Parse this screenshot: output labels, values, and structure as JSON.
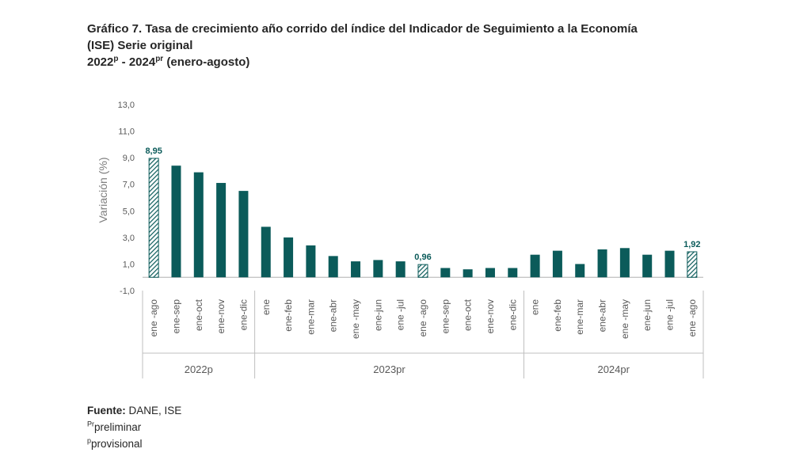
{
  "header": {
    "title_line1": "Gráfico 7. Tasa de crecimiento año corrido del índice del Indicador de Seguimiento a la Economía",
    "title_line2": "(ISE) Serie original",
    "title_line3_a": "2022",
    "title_line3_a_sup": "p",
    "title_line3_sep": " - 2024",
    "title_line3_b_sup": "pr",
    "title_line3_rest": " (enero-agosto)"
  },
  "chart_data": {
    "type": "bar",
    "ylabel": "Variación (%)",
    "ylim": [
      -1.0,
      13.0
    ],
    "yticks": [
      "13,0",
      "11,0",
      "9,0",
      "7,0",
      "5,0",
      "3,0",
      "1,0",
      "-1,0"
    ],
    "ytick_values": [
      13,
      11,
      9,
      7,
      5,
      3,
      1,
      -1
    ],
    "categories": [
      "ene -ago",
      "ene-sep",
      "ene-oct",
      "ene-nov",
      "ene-dic",
      "ene",
      "ene-feb",
      "ene-mar",
      "ene-abr",
      "ene -may",
      "ene-jun",
      "ene -jul",
      "ene -ago",
      "ene-sep",
      "ene-oct",
      "ene-nov",
      "ene-dic",
      "ene",
      "ene-feb",
      "ene-mar",
      "ene-abr",
      "ene -may",
      "ene-jun",
      "ene -jul",
      "ene -ago"
    ],
    "values": [
      8.95,
      8.4,
      7.9,
      7.1,
      6.5,
      3.8,
      3.0,
      2.4,
      1.6,
      1.2,
      1.3,
      1.2,
      0.96,
      0.7,
      0.6,
      0.7,
      0.7,
      1.7,
      2.0,
      1.0,
      2.1,
      2.2,
      1.7,
      2.0,
      1.92
    ],
    "highlighted": [
      0,
      12,
      24
    ],
    "data_labels": [
      {
        "index": 0,
        "text": "8,95"
      },
      {
        "index": 12,
        "text": "0,96"
      },
      {
        "index": 24,
        "text": "1,92"
      }
    ],
    "groups": [
      {
        "label": "2022p",
        "start": 0,
        "end": 4
      },
      {
        "label": "2023pr",
        "start": 5,
        "end": 16
      },
      {
        "label": "2024pr",
        "start": 17,
        "end": 24
      }
    ],
    "colors": {
      "bar": "#0b5b5a",
      "axis": "#bfbfbf",
      "text": "#595959"
    }
  },
  "footer": {
    "source_label": "Fuente:",
    "source_value": " DANE, ISE",
    "note1_sup": "Pr",
    "note1_text": "preliminar",
    "note2_sup": "p",
    "note2_text": "provisional"
  }
}
